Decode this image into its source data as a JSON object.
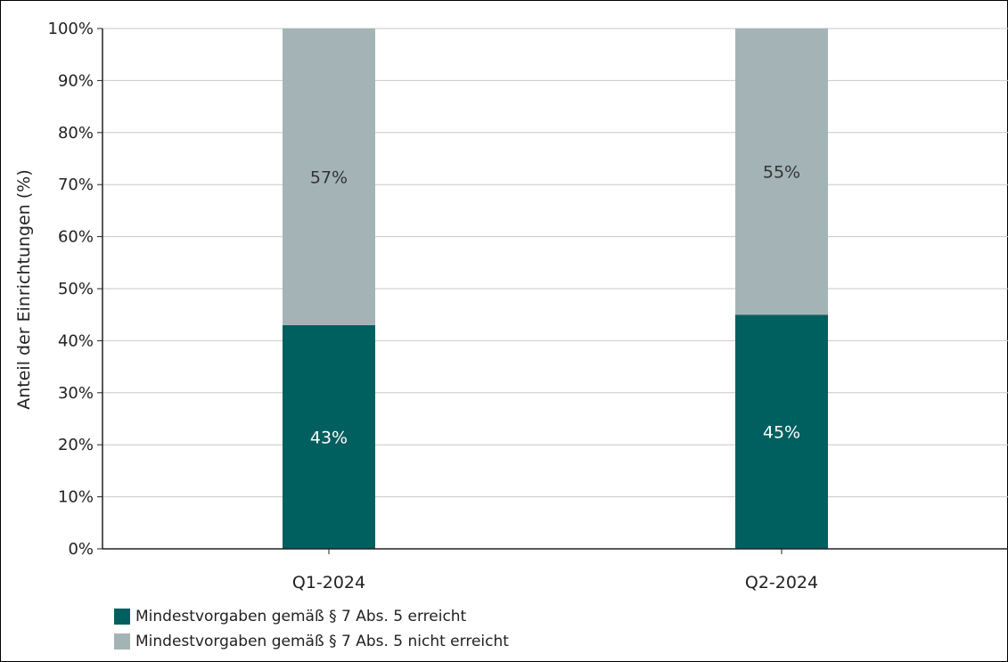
{
  "chart_data": {
    "type": "bar",
    "stacked": true,
    "categories": [
      "Q1-2024",
      "Q2-2024"
    ],
    "series": [
      {
        "name": "Mindestvorgaben gemäß § 7 Abs. 5 erreicht",
        "values": [
          43,
          45
        ],
        "color": "#005f5f",
        "label_color": "#ffffff"
      },
      {
        "name": "Mindestvorgaben gemäß § 7 Abs. 5 nicht erreicht",
        "values": [
          57,
          55
        ],
        "color": "#a4b4b6",
        "label_color": "#333333"
      }
    ],
    "data_labels": [
      [
        "43%",
        "45%"
      ],
      [
        "57%",
        "55%"
      ]
    ],
    "ylabel": "Anteil der Einrichtungen (%)",
    "xlabel": "",
    "ylim": [
      0,
      100
    ],
    "yticks": [
      "0%",
      "10%",
      "20%",
      "30%",
      "40%",
      "50%",
      "60%",
      "70%",
      "80%",
      "90%",
      "100%"
    ],
    "grid": true,
    "legend": "bottom-left"
  }
}
